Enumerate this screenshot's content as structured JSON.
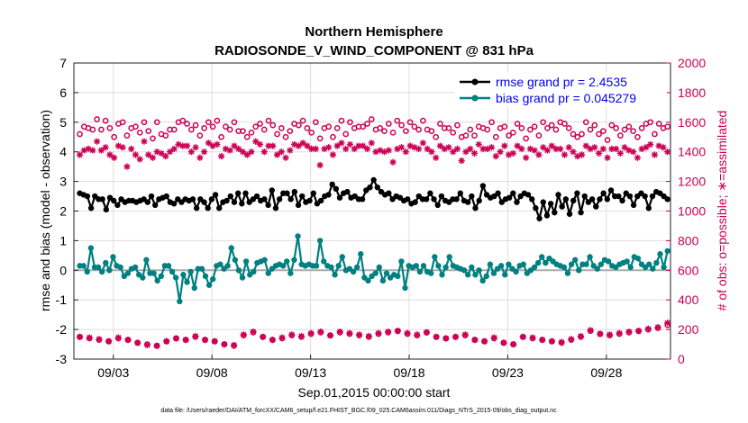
{
  "chart_data": {
    "type": "line",
    "title": "Northern Hemisphere",
    "subtitle": "RADIOSONDE_V_WIND_COMPONENT @ 831 hPa",
    "xlabel": "Sep.01,2015 00:00:00 start",
    "ylabel_left": "rmse and bias (model - observation)",
    "ylabel_right": "# of obs: o=possible; ∗=assimilated",
    "footnote": "data file: /Users/raeder/DAI/ATM_forcXX/CAM6_setup/f.e21.FHIST_BGC.f09_025.CAM6assim.011/Diags_NTrS_2015-09/obs_diag_output.nc",
    "x_ticks": [
      "09/03",
      "09/08",
      "09/13",
      "09/18",
      "09/23",
      "09/28"
    ],
    "x_tick_days": [
      3,
      8,
      13,
      18,
      23,
      28
    ],
    "x_range": [
      1,
      31.25
    ],
    "y_left_range": [
      -3,
      7
    ],
    "y_left_ticks": [
      -3,
      -2,
      -1,
      0,
      1,
      2,
      3,
      4,
      5,
      6,
      7
    ],
    "y_right_range": [
      0,
      2000
    ],
    "y_right_ticks": [
      0,
      200,
      400,
      600,
      800,
      1000,
      1200,
      1400,
      1600,
      1800,
      2000
    ],
    "grid": true,
    "legend_position": "top-right",
    "colors": {
      "rmse": "#000000",
      "bias": "#008080",
      "obs": "#cc0055",
      "zero_line": "#aaaaaa"
    },
    "series": [
      {
        "name": "rmse grand pr = 2.4535",
        "axis": "left",
        "values": [
          2.6,
          2.55,
          2.5,
          2.1,
          2.5,
          2.4,
          2.4,
          2.05,
          2.45,
          2.35,
          2.2,
          2.4,
          2.3,
          2.35,
          2.35,
          2.3,
          2.35,
          2.4,
          2.3,
          2.5,
          2.2,
          2.4,
          2.45,
          2.5,
          2.3,
          2.25,
          2.4,
          2.3,
          2.4,
          2.35,
          2.4,
          2.1,
          2.4,
          2.3,
          2.1,
          2.4,
          2.55,
          2.1,
          2.3,
          2.35,
          2.5,
          2.3,
          2.6,
          2.25,
          2.6,
          2.3,
          2.4,
          2.5,
          2.35,
          2.4,
          2.2,
          2.7,
          2.1,
          2.4,
          2.6,
          2.6,
          2.4,
          2.65,
          2.2,
          2.5,
          2.3,
          2.35,
          2.6,
          2.25,
          2.35,
          2.5,
          2.55,
          2.9,
          2.75,
          2.45,
          2.6,
          2.65,
          2.45,
          2.5,
          2.4,
          2.4,
          2.7,
          2.8,
          3.05,
          2.8,
          2.65,
          2.55,
          2.6,
          2.4,
          2.5,
          2.45,
          2.35,
          2.4,
          2.25,
          2.3,
          2.5,
          2.4,
          2.4,
          2.6,
          2.4,
          2.2,
          2.5,
          2.35,
          2.3,
          2.4,
          2.4,
          2.6,
          2.35,
          2.3,
          2.5,
          2.1,
          2.35,
          2.85,
          2.55,
          2.45,
          2.5,
          2.6,
          2.3,
          2.4,
          2.45,
          2.6,
          2.3,
          2.5,
          2.6,
          2.55,
          2.4,
          2.1,
          1.75,
          2.3,
          1.85,
          2.25,
          1.95,
          2.55,
          2.15,
          2.4,
          1.9,
          2.35,
          2.6,
          1.95,
          2.5,
          2.3,
          2.4,
          2.15,
          2.4,
          2.6,
          2.4,
          2.7,
          2.5,
          2.5,
          2.35,
          2.6,
          2.5,
          2.2,
          2.5,
          2.6,
          2.5,
          2.1,
          2.5,
          2.65,
          2.6,
          2.5,
          2.4
        ]
      },
      {
        "name": "bias grand pr = 0.045279",
        "axis": "left",
        "values": [
          0.15,
          0.15,
          -0.05,
          0.75,
          0.1,
          0.1,
          -0.05,
          0.25,
          0.0,
          0.45,
          0.15,
          0.1,
          -0.2,
          -0.1,
          0.05,
          0.1,
          -0.15,
          -0.25,
          0.35,
          -0.1,
          -0.1,
          -0.35,
          -0.2,
          0.15,
          0.15,
          -0.05,
          -0.25,
          -1.05,
          -0.15,
          -0.4,
          -0.05,
          -0.6,
          0.05,
          0.05,
          -0.2,
          -0.5,
          -0.3,
          0.15,
          0.2,
          0.05,
          0.15,
          0.75,
          0.35,
          0.0,
          -0.25,
          0.3,
          -0.15,
          -0.05,
          0.25,
          0.3,
          0.35,
          -0.1,
          0.05,
          0.15,
          0.2,
          0.15,
          0.3,
          -0.1,
          0.35,
          1.15,
          0.2,
          0.15,
          0.2,
          0.15,
          0.15,
          1.0,
          0.3,
          0.15,
          0.1,
          -0.15,
          0.15,
          0.45,
          0.0,
          0.05,
          -0.05,
          0.1,
          0.55,
          -0.25,
          -0.35,
          -0.2,
          -0.1,
          0.1,
          -0.35,
          -0.1,
          -0.25,
          -0.15,
          -0.2,
          0.3,
          -0.6,
          0.15,
          0.1,
          0.15,
          -0.05,
          0.15,
          -0.05,
          -0.1,
          0.45,
          0.15,
          -0.15,
          0.1,
          0.45,
          0.15,
          0.1,
          0.05,
          0.0,
          -0.15,
          0.1,
          -0.15,
          0.0,
          -0.35,
          -0.2,
          0.2,
          -0.1,
          0.05,
          0.15,
          -0.15,
          0.2,
          0.05,
          -0.05,
          0.15,
          0.2,
          -0.1,
          0.0,
          0.1,
          0.25,
          0.45,
          0.25,
          0.4,
          0.3,
          0.2,
          0.15,
          0.1,
          -0.1,
          0.2,
          0.35,
          0.0,
          0.2,
          0.2,
          0.45,
          0.15,
          0.05,
          0.2,
          0.35,
          0.3,
          0.15,
          0.1,
          0.2,
          0.25,
          0.3,
          0.1,
          0.45,
          0.4,
          0.2,
          0.1,
          0.2,
          0.05,
          0.25,
          0.55,
          0.1,
          0.65
        ]
      },
      {
        "name": "possible",
        "axis": "right",
        "marker": "circle",
        "values": [
          1520,
          1570,
          1560,
          1550,
          1620,
          1550,
          1610,
          1560,
          1500,
          1590,
          1600,
          1510,
          1560,
          1570,
          1530,
          1600,
          1540,
          1490,
          1600,
          1520,
          1510,
          1550,
          1550,
          1600,
          1610,
          1590,
          1550,
          1580,
          1510,
          1560,
          1600,
          1570,
          1610,
          1500,
          1570,
          1550,
          1600,
          1540,
          1540,
          1500,
          1530,
          1570,
          1590,
          1550,
          1610,
          1580,
          1520,
          1560,
          1500,
          1540,
          1590,
          1580,
          1610,
          1560,
          1530,
          1600,
          1490,
          1560,
          1570,
          1500,
          1560,
          1610,
          1520,
          1600,
          1560,
          1570,
          1570,
          1590,
          1620,
          1550,
          1560,
          1540,
          1590,
          1530,
          1610,
          1580,
          1540,
          1600,
          1570,
          1550,
          1610,
          1550,
          1540,
          1500,
          1590,
          1560,
          1560,
          1530,
          1580,
          1500,
          1510,
          1550,
          1510,
          1570,
          1560,
          1550,
          1600,
          1500,
          1560,
          1570,
          1510,
          1530,
          1590,
          1560,
          1490,
          1550,
          1570,
          1510,
          1600,
          1560,
          1580,
          1550,
          1600,
          1590,
          1560,
          1520,
          1500,
          1520,
          1600,
          1550,
          1580,
          1520,
          1540,
          1480,
          1580,
          1560,
          1510,
          1550,
          1570,
          1540,
          1500,
          1560,
          1590,
          1600,
          1520,
          1590,
          1560,
          1570
        ]
      },
      {
        "name": "assimilated",
        "axis": "right",
        "marker": "asterisk",
        "values": [
          1380,
          1410,
          1420,
          1410,
          1470,
          1410,
          1430,
          1380,
          1360,
          1440,
          1430,
          1300,
          1420,
          1380,
          1350,
          1470,
          1380,
          1360,
          1400,
          1390,
          1370,
          1400,
          1420,
          1450,
          1440,
          1440,
          1400,
          1430,
          1360,
          1400,
          1460,
          1440,
          1450,
          1370,
          1420,
          1410,
          1440,
          1420,
          1400,
          1380,
          1400,
          1470,
          1450,
          1400,
          1440,
          1440,
          1380,
          1400,
          1360,
          1410,
          1450,
          1440,
          1460,
          1440,
          1420,
          1420,
          1310,
          1420,
          1430,
          1380,
          1440,
          1460,
          1420,
          1450,
          1420,
          1440,
          1440,
          1420,
          1460,
          1400,
          1410,
          1400,
          1410,
          1330,
          1420,
          1430,
          1400,
          1440,
          1430,
          1420,
          1460,
          1420,
          1400,
          1360,
          1440,
          1420,
          1430,
          1400,
          1420,
          1340,
          1400,
          1420,
          1390,
          1450,
          1420,
          1420,
          1430,
          1370,
          1400,
          1440,
          1380,
          1390,
          1440,
          1420,
          1360,
          1420,
          1410,
          1380,
          1430,
          1410,
          1440,
          1420,
          1420,
          1380,
          1430,
          1400,
          1370,
          1380,
          1440,
          1420,
          1430,
          1390,
          1420,
          1360,
          1420,
          1420,
          1390,
          1430,
          1410,
          1400,
          1360,
          1420,
          1430,
          1450,
          1380,
          1440,
          1430,
          1400
        ]
      },
      {
        "name": "possible-low",
        "axis": "right",
        "marker": "circle",
        "values": [
          150,
          140,
          130,
          120,
          140,
          130,
          110,
          100,
          90,
          120,
          140,
          130,
          150,
          130,
          120,
          100,
          90,
          160,
          180,
          150,
          130,
          140,
          160,
          150,
          170,
          180,
          160,
          180,
          170,
          160,
          150,
          170,
          180,
          190,
          170,
          160,
          180,
          150,
          140,
          150,
          160,
          130,
          120,
          140,
          110,
          100,
          150,
          140,
          130,
          120,
          110,
          130,
          150,
          190,
          170,
          160,
          170,
          180,
          190,
          200,
          210,
          230
        ]
      },
      {
        "name": "assimilated-low",
        "axis": "right",
        "marker": "asterisk",
        "values": [
          150,
          145,
          135,
          120,
          145,
          130,
          110,
          95,
          90,
          120,
          140,
          130,
          155,
          130,
          120,
          100,
          95,
          165,
          185,
          150,
          130,
          145,
          165,
          155,
          175,
          185,
          160,
          185,
          175,
          165,
          155,
          175,
          185,
          190,
          175,
          165,
          180,
          150,
          140,
          150,
          165,
          130,
          120,
          145,
          110,
          100,
          150,
          145,
          130,
          120,
          115,
          135,
          155,
          195,
          170,
          165,
          175,
          185,
          190,
          205,
          215,
          245
        ]
      }
    ]
  }
}
